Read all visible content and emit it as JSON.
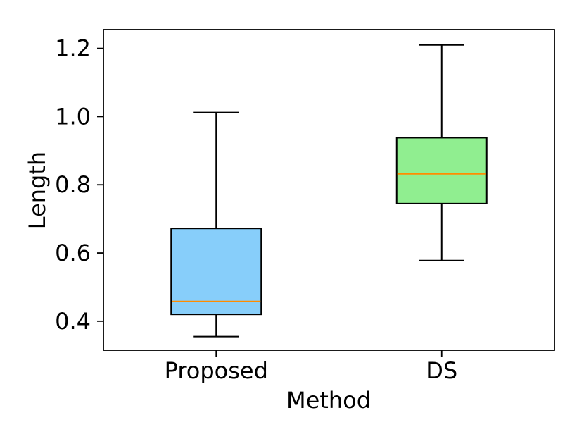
{
  "chart_data": {
    "type": "box",
    "xlabel": "Method",
    "ylabel": "Length",
    "categories": [
      "Proposed",
      "DS"
    ],
    "ylim": [
      0.315,
      1.255
    ],
    "yticks": [
      "0.4",
      "0.6",
      "0.8",
      "1.0",
      "1.2"
    ],
    "grid": false,
    "series": [
      {
        "category": "Proposed",
        "whisker_low": 0.355,
        "q1": 0.42,
        "median": 0.458,
        "q3": 0.672,
        "whisker_high": 1.012,
        "color": "#87cefa"
      },
      {
        "category": "DS",
        "whisker_low": 0.578,
        "q1": 0.745,
        "median": 0.832,
        "q3": 0.938,
        "whisker_high": 1.21,
        "color": "#90ee90"
      }
    ],
    "median_color": "#ff8c00"
  }
}
